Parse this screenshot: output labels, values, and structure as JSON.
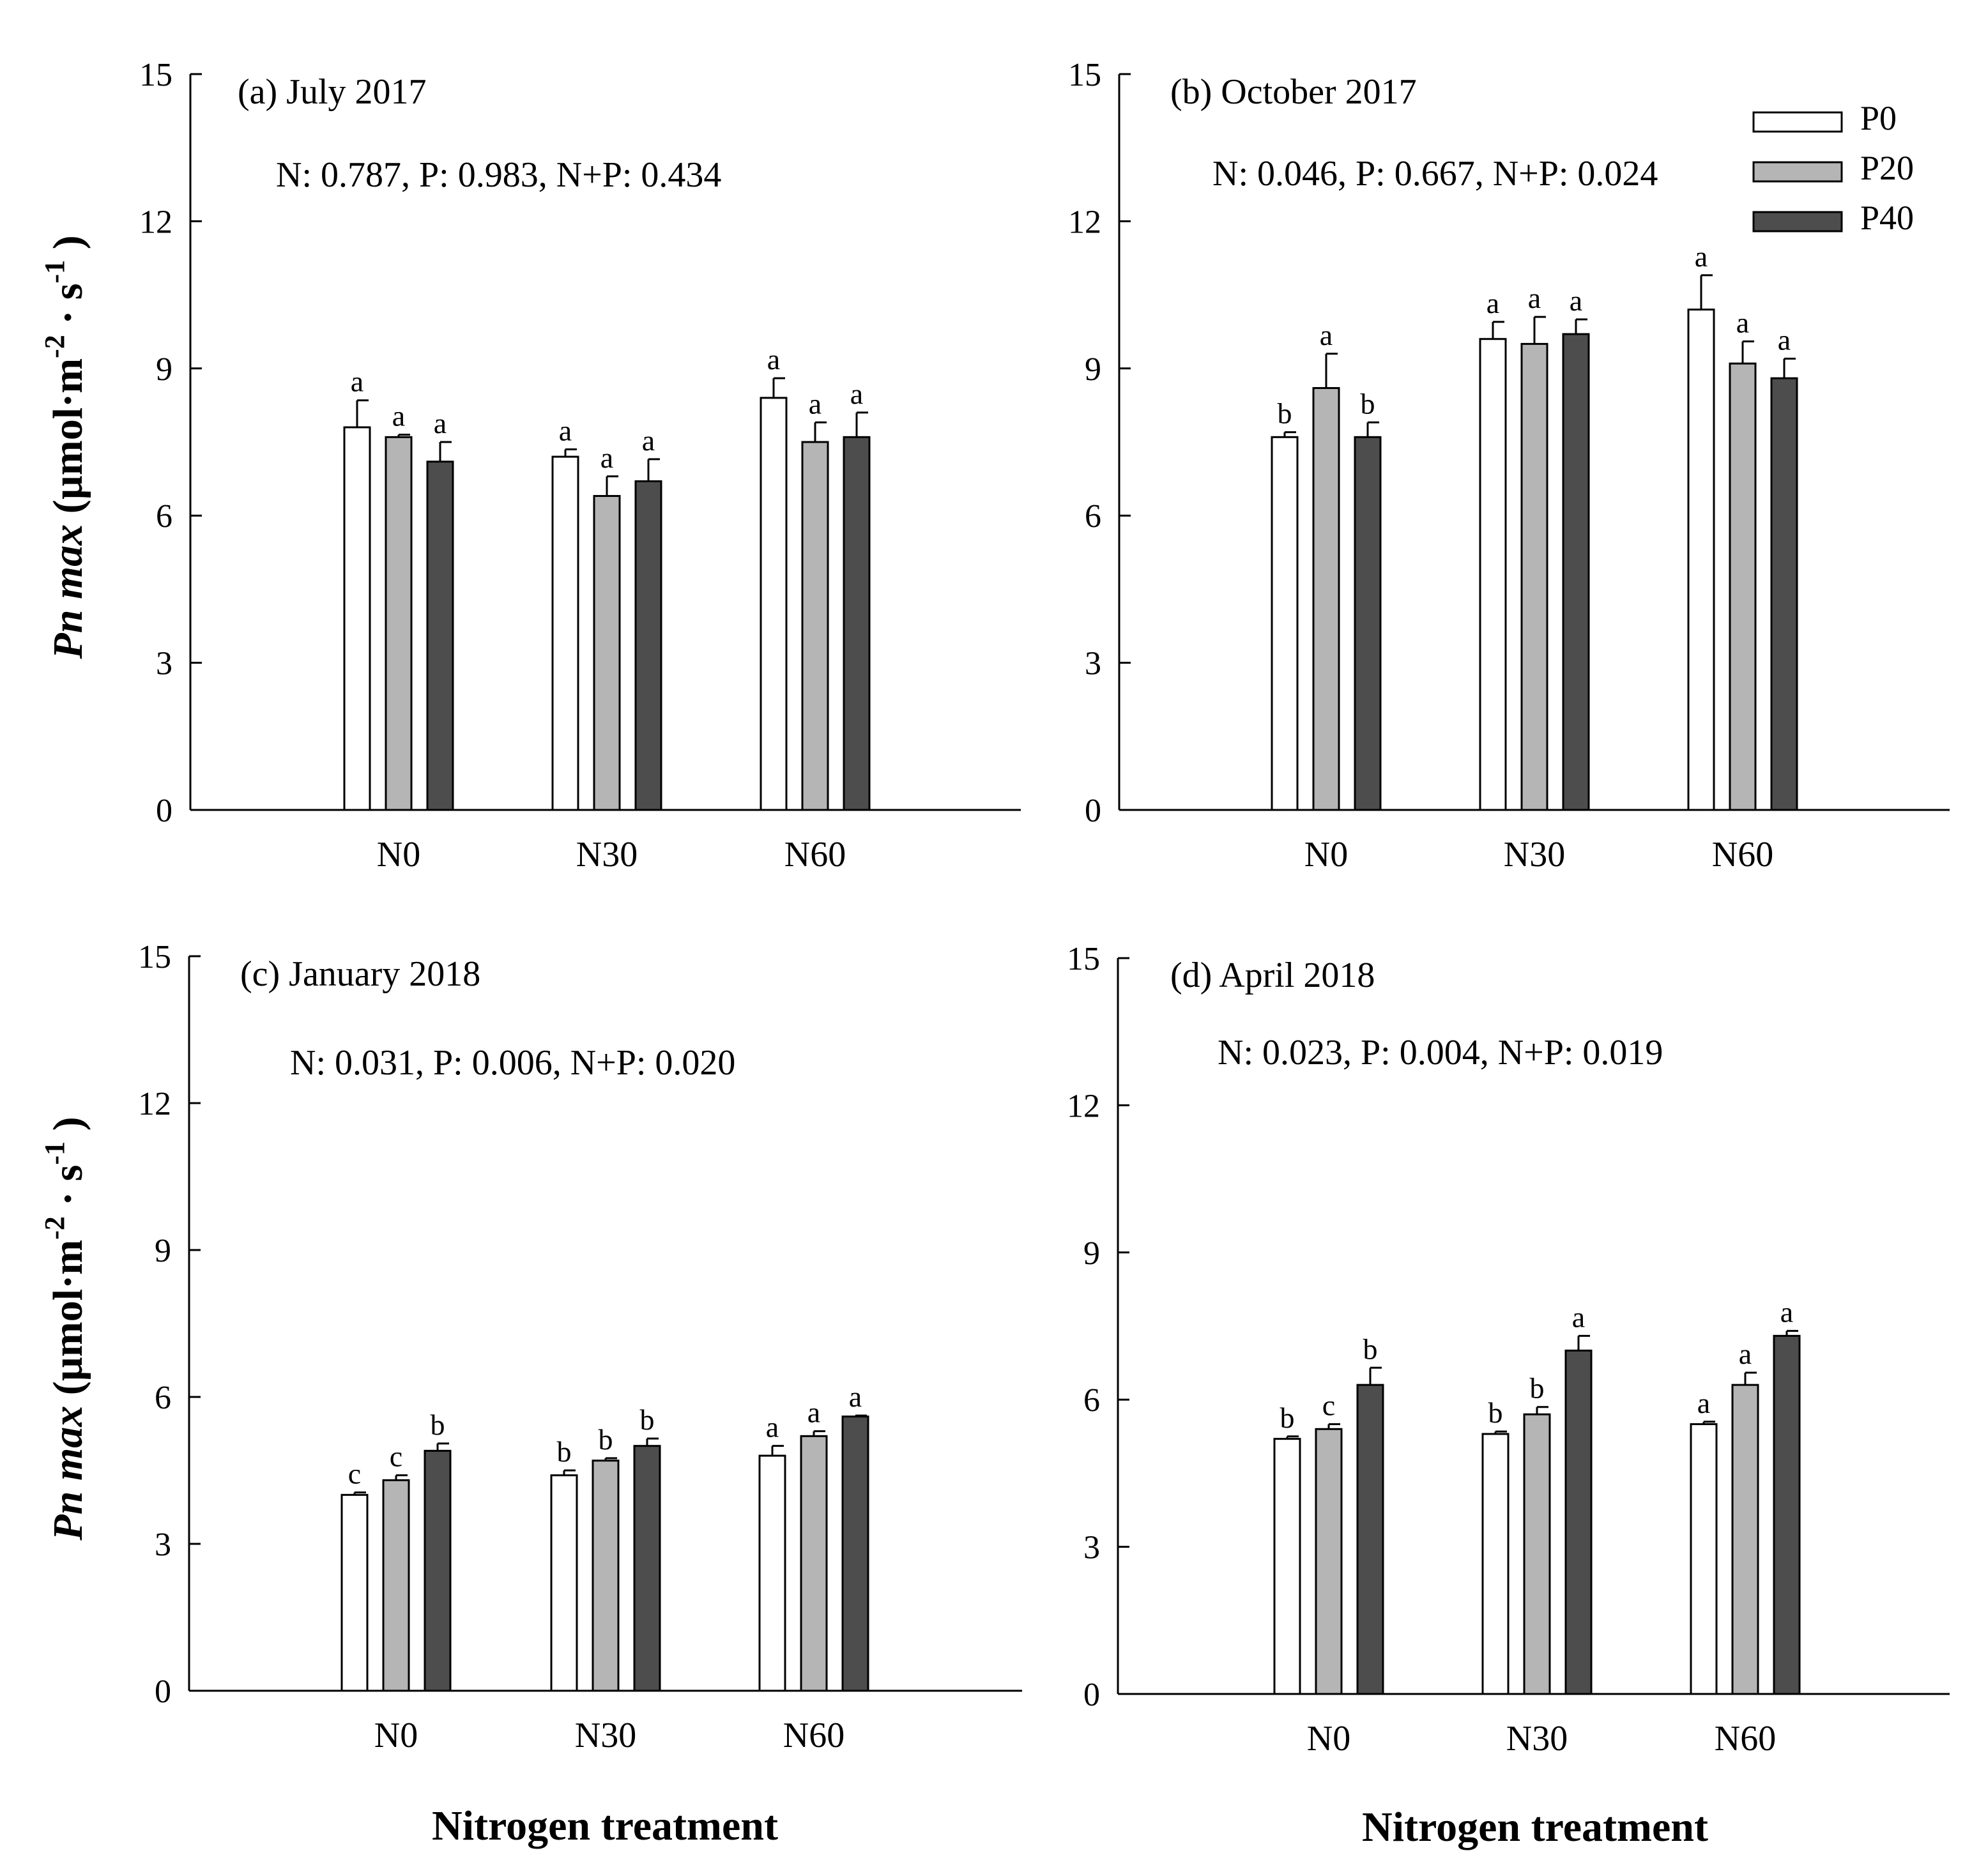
{
  "figure": {
    "y_axis_label_italic": "Pn max",
    "y_axis_label_unit": " (µmol·m",
    "y_axis_label_sup1": "-2",
    "y_axis_label_mid": " · s",
    "y_axis_label_sup2": "-1",
    "y_axis_label_close": " )",
    "x_axis_label": "Nitrogen treatment"
  },
  "legend": {
    "entries": [
      {
        "label": "P0",
        "color": "#ffffff"
      },
      {
        "label": "P20",
        "color": "#b5b5b5"
      },
      {
        "label": "P40",
        "color": "#4d4d4d"
      }
    ]
  },
  "chart_data": [
    {
      "type": "bar",
      "title": "(a) July 2017",
      "stats": "N: 0.787, P: 0.983, N+P: 0.434",
      "categories": [
        "N0",
        "N30",
        "N60"
      ],
      "ylim": [
        0,
        15
      ],
      "yticks": [
        0,
        3,
        6,
        9,
        12,
        15
      ],
      "series": [
        {
          "name": "P0",
          "values": [
            7.8,
            7.2,
            8.4
          ],
          "errors": [
            0.55,
            0.15,
            0.4
          ],
          "letters": [
            "a",
            "a",
            "a"
          ]
        },
        {
          "name": "P20",
          "values": [
            7.6,
            6.4,
            7.5
          ],
          "errors": [
            0.05,
            0.4,
            0.4
          ],
          "letters": [
            "a",
            "a",
            "a"
          ]
        },
        {
          "name": "P40",
          "values": [
            7.1,
            6.7,
            7.6
          ],
          "errors": [
            0.4,
            0.45,
            0.5
          ],
          "letters": [
            "a",
            "a",
            "a"
          ]
        }
      ]
    },
    {
      "type": "bar",
      "title": "(b) October 2017",
      "stats": "N: 0.046, P: 0.667, N+P: 0.024",
      "categories": [
        "N0",
        "N30",
        "N60"
      ],
      "ylim": [
        0,
        15
      ],
      "yticks": [
        0,
        3,
        6,
        9,
        12,
        15
      ],
      "series": [
        {
          "name": "P0",
          "values": [
            7.6,
            9.6,
            10.2
          ],
          "errors": [
            0.1,
            0.35,
            0.7
          ],
          "letters": [
            "b",
            "a",
            "a"
          ]
        },
        {
          "name": "P20",
          "values": [
            8.6,
            9.5,
            9.1
          ],
          "errors": [
            0.7,
            0.55,
            0.45
          ],
          "letters": [
            "a",
            "a",
            "a"
          ]
        },
        {
          "name": "P40",
          "values": [
            7.6,
            9.7,
            8.8
          ],
          "errors": [
            0.3,
            0.3,
            0.4
          ],
          "letters": [
            "b",
            "a",
            "a"
          ]
        }
      ]
    },
    {
      "type": "bar",
      "title": "(c) January 2018",
      "stats": "N: 0.031, P: 0.006, N+P: 0.020",
      "categories": [
        "N0",
        "N30",
        "N60"
      ],
      "ylim": [
        0,
        15
      ],
      "yticks": [
        0,
        3,
        6,
        9,
        12,
        15
      ],
      "series": [
        {
          "name": "P0",
          "values": [
            4.0,
            4.4,
            4.8
          ],
          "errors": [
            0.05,
            0.1,
            0.2
          ],
          "letters": [
            "c",
            "b",
            "a"
          ]
        },
        {
          "name": "P20",
          "values": [
            4.3,
            4.7,
            5.2
          ],
          "errors": [
            0.1,
            0.05,
            0.1
          ],
          "letters": [
            "c",
            "b",
            "a"
          ]
        },
        {
          "name": "P40",
          "values": [
            4.9,
            5.0,
            5.6
          ],
          "errors": [
            0.15,
            0.15,
            0.02
          ],
          "letters": [
            "b",
            "b",
            "a"
          ]
        }
      ]
    },
    {
      "type": "bar",
      "title": "(d) April 2018",
      "stats": "N: 0.023, P: 0.004, N+P: 0.019",
      "categories": [
        "N0",
        "N30",
        "N60"
      ],
      "ylim": [
        0,
        15
      ],
      "yticks": [
        0,
        3,
        6,
        9,
        12,
        15
      ],
      "series": [
        {
          "name": "P0",
          "values": [
            5.2,
            5.3,
            5.5
          ],
          "errors": [
            0.05,
            0.05,
            0.05
          ],
          "letters": [
            "b",
            "b",
            "a"
          ]
        },
        {
          "name": "P20",
          "values": [
            5.4,
            5.7,
            6.3
          ],
          "errors": [
            0.1,
            0.15,
            0.25
          ],
          "letters": [
            "c",
            "b",
            "a"
          ]
        },
        {
          "name": "P40",
          "values": [
            6.3,
            7.0,
            7.3
          ],
          "errors": [
            0.35,
            0.3,
            0.1
          ],
          "letters": [
            "b",
            "a",
            "a"
          ]
        }
      ]
    }
  ]
}
